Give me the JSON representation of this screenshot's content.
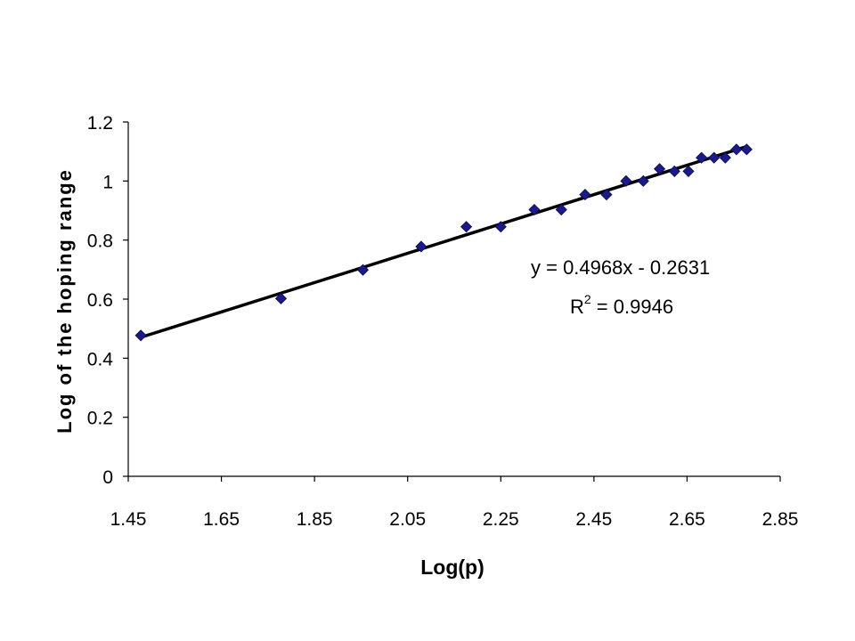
{
  "chart_data": {
    "type": "scatter",
    "title": "",
    "xlabel": "Log(p)",
    "ylabel": "Log of the hoping range",
    "xlim": [
      1.45,
      2.85
    ],
    "ylim": [
      0,
      1.2
    ],
    "x_ticks": [
      "1.45",
      "1.65",
      "1.85",
      "2.05",
      "2.25",
      "2.45",
      "2.65",
      "2.85"
    ],
    "y_ticks": [
      "0",
      "0.2",
      "0.4",
      "0.6",
      "0.8",
      "1",
      "1.2"
    ],
    "grid": false,
    "legend": "none",
    "marker_color": "#1a1a8c",
    "trendline_color": "#000000",
    "series": [
      {
        "points": [
          [
            1.477,
            0.477
          ],
          [
            1.778,
            0.602
          ],
          [
            1.954,
            0.699
          ],
          [
            2.079,
            0.778
          ],
          [
            2.176,
            0.845
          ],
          [
            2.25,
            0.845
          ],
          [
            2.322,
            0.903
          ],
          [
            2.38,
            0.903
          ],
          [
            2.431,
            0.954
          ],
          [
            2.477,
            0.954
          ],
          [
            2.519,
            1.0
          ],
          [
            2.556,
            1.0
          ],
          [
            2.591,
            1.041
          ],
          [
            2.623,
            1.033
          ],
          [
            2.653,
            1.033
          ],
          [
            2.681,
            1.079
          ],
          [
            2.708,
            1.079
          ],
          [
            2.732,
            1.079
          ],
          [
            2.756,
            1.107
          ],
          [
            2.778,
            1.107
          ]
        ]
      }
    ],
    "trendline": {
      "type": "linear",
      "slope": 0.4968,
      "intercept": -0.2631,
      "equation": "y = 0.4968x - 0.2631",
      "r2_prefix": "R",
      "r2_sup": "2",
      "r2_value": " = 0.9946"
    }
  }
}
